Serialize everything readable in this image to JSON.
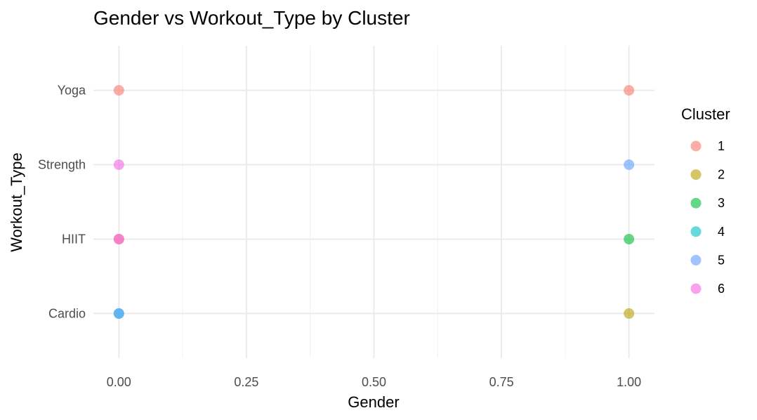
{
  "chart_data": {
    "type": "scatter",
    "title": "Gender vs Workout_Type by Cluster",
    "xlabel": "Gender",
    "ylabel": "Workout_Type",
    "x_ticks": [
      "0.00",
      "0.25",
      "0.50",
      "0.75",
      "1.00"
    ],
    "x_tick_values": [
      0,
      0.25,
      0.5,
      0.75,
      1
    ],
    "xlim": [
      -0.05,
      1.05
    ],
    "categories": [
      "Cardio",
      "HIIT",
      "Strength",
      "Yoga"
    ],
    "grid": true,
    "legend": {
      "title": "Cluster",
      "position": "right",
      "entries": [
        {
          "label": "1",
          "color": "#F8766D"
        },
        {
          "label": "2",
          "color": "#B79F00"
        },
        {
          "label": "3",
          "color": "#00BA38"
        },
        {
          "label": "4",
          "color": "#00BFC4"
        },
        {
          "label": "5",
          "color": "#619CFF"
        },
        {
          "label": "6",
          "color": "#F564E3"
        }
      ]
    },
    "points": [
      {
        "x": 0,
        "y": "Yoga",
        "cluster": "1"
      },
      {
        "x": 1,
        "y": "Yoga",
        "cluster": "1"
      },
      {
        "x": 0,
        "y": "Strength",
        "cluster": "6"
      },
      {
        "x": 1,
        "y": "Strength",
        "cluster": "5"
      },
      {
        "x": 0,
        "y": "HIIT",
        "cluster": "1"
      },
      {
        "x": 0,
        "y": "HIIT",
        "cluster": "6"
      },
      {
        "x": 1,
        "y": "HIIT",
        "cluster": "3"
      },
      {
        "x": 0,
        "y": "Cardio",
        "cluster": "4"
      },
      {
        "x": 0,
        "y": "Cardio",
        "cluster": "5"
      },
      {
        "x": 1,
        "y": "Cardio",
        "cluster": "2"
      }
    ]
  }
}
